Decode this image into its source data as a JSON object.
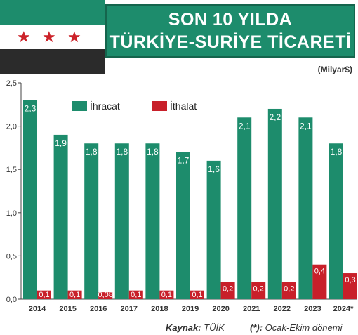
{
  "header": {
    "title_line1": "SON 10 YILDA",
    "title_line2": "TÜRKİYE-SURİYE TİCARETİ",
    "unit": "(Milyar$)"
  },
  "flag": {
    "stars": [
      "★",
      "★",
      "★"
    ]
  },
  "footer": {
    "source_label": "Kaynak:",
    "source_value": "TÜİK",
    "note_label": "(*):",
    "note_value": "Ocak-Ekim dönemi"
  },
  "colors": {
    "export": "#1d8c6c",
    "import": "#c8202a",
    "brand_green": "#1d8c6c",
    "flag_black": "#2b2b2b",
    "star_red": "#cc2229"
  },
  "chart_data": {
    "type": "bar",
    "categories": [
      "2014",
      "2015",
      "2016",
      "2017",
      "2018",
      "2019",
      "2020",
      "2021",
      "2022",
      "2023",
      "2024*"
    ],
    "series": [
      {
        "name": "İhracat",
        "values": [
          2.3,
          1.9,
          1.8,
          1.8,
          1.8,
          1.7,
          1.6,
          2.1,
          2.2,
          2.1,
          1.8
        ],
        "labels": [
          "2,3",
          "1,9",
          "1,8",
          "1,8",
          "1,8",
          "1,7",
          "1,6",
          "2,1",
          "2,2",
          "2,1",
          "1,8"
        ]
      },
      {
        "name": "İthalat",
        "values": [
          0.1,
          0.1,
          0.08,
          0.1,
          0.1,
          0.1,
          0.2,
          0.2,
          0.2,
          0.4,
          0.3
        ],
        "labels": [
          "0,1",
          "0,1",
          "0,08",
          "0,1",
          "0,1",
          "0,1",
          "0,2",
          "0,2",
          "0,2",
          "0,4",
          "0,3"
        ]
      }
    ],
    "ylim": [
      0,
      2.5
    ],
    "yticks": [
      "0,0",
      "0,5",
      "1,0",
      "1,5",
      "2,0",
      "2,5"
    ],
    "grid": false,
    "legend_position": "top-left"
  }
}
